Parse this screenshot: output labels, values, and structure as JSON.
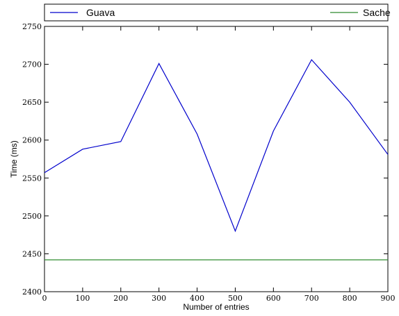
{
  "chart_data": {
    "type": "line",
    "title": "",
    "xlabel": "Number of entries",
    "ylabel": "Time (ms)",
    "x": [
      0,
      100,
      200,
      300,
      400,
      500,
      600,
      700,
      800,
      900
    ],
    "xlim": [
      0,
      900
    ],
    "ylim": [
      2400,
      2750
    ],
    "xticks": [
      "0",
      "100",
      "200",
      "300",
      "400",
      "500",
      "600",
      "700",
      "800",
      "900"
    ],
    "yticks": [
      "2400",
      "2450",
      "2500",
      "2550",
      "2600",
      "2650",
      "2700",
      "2750"
    ],
    "grid": false,
    "legend_position": "top (outside plot, spanning width)",
    "series": [
      {
        "name": "Guava",
        "color": "#0000cc",
        "values": [
          2557,
          2588,
          2598,
          2701,
          2608,
          2480,
          2612,
          2706,
          2650,
          2581
        ]
      },
      {
        "name": "Sache",
        "color": "#2e8b2e",
        "values": [
          2442,
          2442,
          2442,
          2442,
          2442,
          2442,
          2442,
          2442,
          2442,
          2442
        ]
      }
    ]
  }
}
